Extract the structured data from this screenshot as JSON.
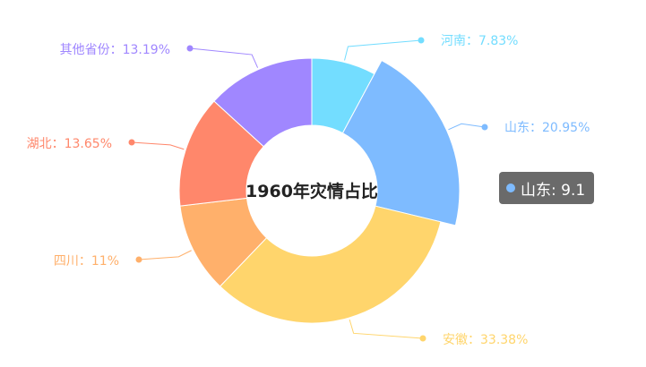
{
  "chart_data": {
    "type": "pie",
    "title": "1960年灾情占比",
    "categories": [
      "河南",
      "山东",
      "安徽",
      "四川",
      "湖北",
      "其他省份"
    ],
    "values": [
      7.83,
      20.95,
      33.38,
      11,
      13.65,
      13.19
    ],
    "labels": [
      "河南：7.83%",
      "山东：20.95%",
      "安徽：33.38%",
      "四川：11%",
      "湖北：13.65%",
      "其他省份：13.19%"
    ],
    "colors": [
      "#73DDFF",
      "#7EBBFF",
      "#FFD56C",
      "#FFB06B",
      "#FF876B",
      "#A087FF"
    ],
    "highlighted": "山东",
    "legend": "none"
  },
  "tooltip": {
    "name": "山东",
    "value": "9.1",
    "color": "#7EBBFF",
    "text": "山东: 9.1"
  }
}
